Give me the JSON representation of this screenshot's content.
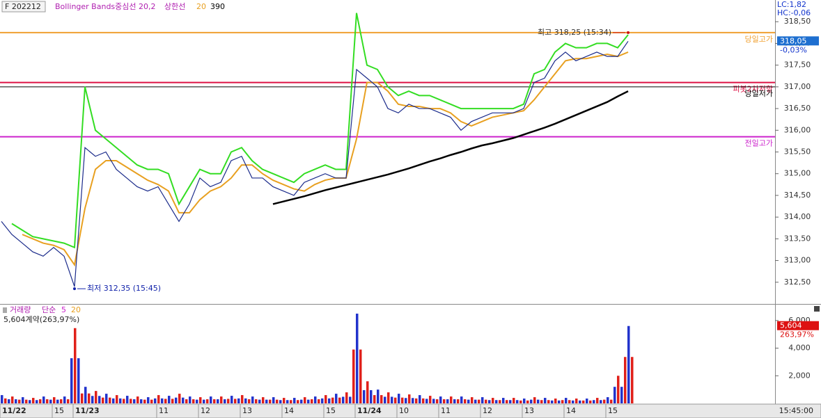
{
  "chart_data": [
    {
      "type": "line",
      "series": [
        {
          "name": "F 202212",
          "color": "#1a2a8a",
          "values": [
            313.9,
            313.6,
            313.4,
            313.2,
            313.1,
            313.3,
            313.1,
            312.4,
            315.6,
            315.4,
            315.5,
            315.1,
            314.9,
            314.7,
            314.6,
            314.7,
            314.3,
            313.9,
            314.3,
            314.9,
            314.7,
            314.8,
            315.3,
            315.4,
            314.9,
            314.9,
            314.7,
            314.6,
            314.5,
            314.8,
            314.9,
            315.0,
            314.9,
            314.9,
            317.4,
            317.2,
            317.0,
            316.5,
            316.4,
            316.6,
            316.5,
            316.5,
            316.4,
            316.3,
            316.0,
            316.2,
            316.3,
            316.4,
            316.4,
            316.4,
            316.5,
            317.1,
            317.2,
            317.6,
            317.8,
            317.6,
            317.7,
            317.8,
            317.7,
            317.7,
            318.05
          ]
        },
        {
          "name": "Bollinger Bands중심선 20,2",
          "color": "#e8a020",
          "values": [
            null,
            null,
            313.6,
            313.5,
            313.4,
            313.35,
            313.25,
            312.9,
            314.2,
            315.1,
            315.3,
            315.3,
            315.15,
            315.0,
            314.85,
            314.75,
            314.6,
            314.1,
            314.1,
            314.4,
            314.6,
            314.7,
            314.9,
            315.2,
            315.2,
            315.0,
            314.85,
            314.75,
            314.65,
            314.6,
            314.75,
            314.85,
            314.9,
            314.9,
            315.8,
            317.1,
            317.1,
            316.9,
            316.6,
            316.55,
            316.55,
            316.5,
            316.5,
            316.4,
            316.2,
            316.1,
            316.2,
            316.3,
            316.35,
            316.4,
            316.45,
            316.7,
            317.0,
            317.3,
            317.6,
            317.65,
            317.65,
            317.7,
            317.75,
            317.7,
            317.8
          ]
        },
        {
          "name": "상한선",
          "color": "#33dd22",
          "values": [
            null,
            313.85,
            313.7,
            313.55,
            313.5,
            313.45,
            313.4,
            313.3,
            317.0,
            316.0,
            315.8,
            315.6,
            315.4,
            315.2,
            315.1,
            315.1,
            315.0,
            314.3,
            314.7,
            315.1,
            315.0,
            315.0,
            315.5,
            315.6,
            315.3,
            315.1,
            315.0,
            314.9,
            314.8,
            315.0,
            315.1,
            315.2,
            315.1,
            315.1,
            318.7,
            317.5,
            317.4,
            317.0,
            316.8,
            316.9,
            316.8,
            316.8,
            316.7,
            316.6,
            316.5,
            316.5,
            316.5,
            316.5,
            316.5,
            316.5,
            316.6,
            317.3,
            317.4,
            317.8,
            318.0,
            317.9,
            317.9,
            318.0,
            318.0,
            317.9,
            318.2
          ]
        },
        {
          "name": "390",
          "color": "#000000",
          "values": [
            null,
            null,
            null,
            null,
            null,
            null,
            null,
            null,
            null,
            null,
            null,
            null,
            null,
            null,
            null,
            null,
            null,
            null,
            null,
            null,
            null,
            null,
            null,
            null,
            null,
            null,
            314.3,
            314.36,
            314.42,
            314.48,
            314.55,
            314.62,
            314.68,
            314.74,
            314.8,
            314.86,
            314.92,
            314.98,
            315.05,
            315.12,
            315.2,
            315.28,
            315.35,
            315.43,
            315.5,
            315.58,
            315.65,
            315.7,
            315.76,
            315.82,
            315.9,
            315.98,
            316.06,
            316.15,
            316.25,
            316.35,
            316.45,
            316.55,
            316.65,
            316.78,
            316.9
          ]
        }
      ],
      "legend_param": "20",
      "categories": [
        "11/22",
        null,
        null,
        null,
        null,
        "15",
        null,
        "11/23",
        null,
        null,
        null,
        null,
        null,
        null,
        null,
        "11",
        null,
        null,
        null,
        "12",
        null,
        null,
        null,
        "13",
        null,
        null,
        null,
        "14",
        null,
        null,
        null,
        "15",
        null,
        null,
        "11/24",
        null,
        null,
        null,
        "10",
        null,
        null,
        null,
        "11",
        null,
        null,
        null,
        "12",
        null,
        null,
        null,
        "13",
        null,
        null,
        null,
        "14",
        null,
        null,
        null,
        "15",
        null,
        null
      ],
      "ylim": [
        312.0,
        319.0
      ],
      "yticks": [
        {
          "value": 312.5,
          "label": "312,50"
        },
        {
          "value": 313.0,
          "label": "313,00"
        },
        {
          "value": 313.5,
          "label": "313,50"
        },
        {
          "value": 314.0,
          "label": "314,00"
        },
        {
          "value": 314.5,
          "label": "314,50"
        },
        {
          "value": 315.0,
          "label": "315,00"
        },
        {
          "value": 315.5,
          "label": "315,50"
        },
        {
          "value": 316.0,
          "label": "316,00"
        },
        {
          "value": 316.5,
          "label": "316,50"
        },
        {
          "value": 317.0,
          "label": "317,00"
        },
        {
          "value": 317.5,
          "label": "317,50"
        },
        {
          "value": 318.0,
          "label": "318,00"
        },
        {
          "value": 318.5,
          "label": "318,50"
        }
      ],
      "hlines": [
        {
          "label": "당일고가",
          "value": 318.25,
          "color": "#f0a030"
        },
        {
          "label": "피봇2차저항",
          "value": 317.1,
          "color": "#dd1144"
        },
        {
          "label": "당일저가",
          "value": 317.0,
          "color": "#000000"
        },
        {
          "label": "전일고가",
          "value": 315.85,
          "color": "#cc22cc"
        }
      ],
      "annotations": [
        {
          "text": "최고 318,25 (15:34)",
          "index": 60,
          "value": 318.25,
          "color": "#cc1111"
        },
        {
          "text": "최저 312,35 (15:45)",
          "index": 7,
          "value": 312.35,
          "color": "#1122aa"
        }
      ],
      "info": [
        "LC:1,82",
        "HC:-0,06"
      ],
      "last_price": {
        "value": 318.05,
        "label": "318,05"
      },
      "last_change": "-0,03%"
    },
    {
      "type": "bar",
      "series": [
        {
          "name": "거래량",
          "colors": [
            "#e0201a",
            "#2233cc"
          ],
          "values": [
            600,
            500,
            450,
            400,
            500,
            450,
            500,
            5450,
            1200,
            900,
            700,
            600,
            550,
            500,
            450,
            600,
            550,
            700,
            500,
            450,
            500,
            500,
            550,
            600,
            500,
            450,
            450,
            400,
            400,
            450,
            500,
            600,
            700,
            800,
            6500,
            1600,
            1000,
            800,
            700,
            650,
            600,
            550,
            500,
            500,
            500,
            450,
            450,
            400,
            400,
            400,
            350,
            450,
            400,
            350,
            400,
            350,
            350,
            400,
            450,
            2000,
            5604
          ]
        }
      ],
      "ma_label": "단순",
      "ma_periods": [
        {
          "value": 5,
          "color": "#cc22cc"
        },
        {
          "value": 20,
          "color": "#e8a020"
        }
      ],
      "summary": "5,604계약(263,97%)",
      "last_value": {
        "value": 5604,
        "label": "5,604"
      },
      "last_ratio": "263,97%",
      "ylim": [
        0,
        7000
      ],
      "yticks": [
        {
          "value": 2000,
          "label": "2,000"
        },
        {
          "value": 4000,
          "label": "4,000"
        },
        {
          "value": 6000,
          "label": "6,000"
        }
      ]
    }
  ],
  "time_label": "15:45:00"
}
